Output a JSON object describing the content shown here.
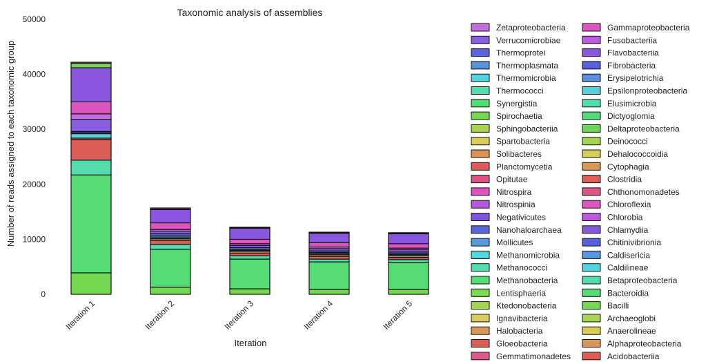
{
  "chart_data": {
    "type": "bar",
    "stacked": true,
    "title": "Taxonomic analysis of assemblies",
    "xlabel": "Iteration",
    "ylabel": "Number of reads assigned to each taxonomic group",
    "ylim": [
      0,
      50000
    ],
    "yticks": [
      0,
      10000,
      20000,
      30000,
      40000,
      50000
    ],
    "grid": false,
    "legend_position": "right",
    "categories": [
      "Iteration 1",
      "Iteration 2",
      "Iteration 3",
      "Iteration 4",
      "Iteration 5"
    ],
    "legend": [
      {
        "name": "Zetaproteobacteria",
        "color": "#c56ee0"
      },
      {
        "name": "Verrucomicrobiae",
        "color": "#8a5ee0"
      },
      {
        "name": "Thermoprotei",
        "color": "#5a62e0"
      },
      {
        "name": "Thermoplasmata",
        "color": "#5b92dc"
      },
      {
        "name": "Thermomicrobia",
        "color": "#55d3df"
      },
      {
        "name": "Thermococci",
        "color": "#55dcae"
      },
      {
        "name": "Synergistia",
        "color": "#56dc74"
      },
      {
        "name": "Spirochaetia",
        "color": "#74d950"
      },
      {
        "name": "Sphingobacteriia",
        "color": "#a8d54f"
      },
      {
        "name": "Spartobacteria",
        "color": "#d8cf58"
      },
      {
        "name": "Solibacteres",
        "color": "#da9454"
      },
      {
        "name": "Planctomycetia",
        "color": "#dc5d57"
      },
      {
        "name": "Opitutae",
        "color": "#dc5584"
      },
      {
        "name": "Nitrospira",
        "color": "#dc55be"
      },
      {
        "name": "Nitrospinia",
        "color": "#b659dc"
      },
      {
        "name": "Negativicutes",
        "color": "#7e55dc"
      },
      {
        "name": "Nanohaloarchaea",
        "color": "#5865dc"
      },
      {
        "name": "Mollicutes",
        "color": "#5a98dc"
      },
      {
        "name": "Methanomicrobia",
        "color": "#55d6dc"
      },
      {
        "name": "Methanococci",
        "color": "#55dcaa"
      },
      {
        "name": "Methanobacteria",
        "color": "#56dc78"
      },
      {
        "name": "Lentisphaeria",
        "color": "#7ad955"
      },
      {
        "name": "Ktedonobacteria",
        "color": "#a5d653"
      },
      {
        "name": "Ignavibacteria",
        "color": "#d8cc5a"
      },
      {
        "name": "Halobacteria",
        "color": "#da9a57"
      },
      {
        "name": "Gloeobacteria",
        "color": "#dc5f55"
      },
      {
        "name": "Gemmatimonadetes",
        "color": "#dc5a8a"
      },
      {
        "name": "Gammaproteobacteria",
        "color": "#dc55c0"
      },
      {
        "name": "Fusobacteriia",
        "color": "#c05ae0"
      },
      {
        "name": "Flavobacteriia",
        "color": "#8b57e0"
      },
      {
        "name": "Fibrobacteria",
        "color": "#5860e0"
      },
      {
        "name": "Erysipelotrichia",
        "color": "#5a8ee0"
      },
      {
        "name": "Epsilonproteobacteria",
        "color": "#55d0dc"
      },
      {
        "name": "Elusimicrobia",
        "color": "#55dcb0"
      },
      {
        "name": "Dictyoglomia",
        "color": "#55d97c"
      },
      {
        "name": "Deltaproteobacteria",
        "color": "#6ed655"
      },
      {
        "name": "Deinococci",
        "color": "#a5d653"
      },
      {
        "name": "Dehalococcoidia",
        "color": "#d6ce58"
      },
      {
        "name": "Cytophagia",
        "color": "#da9856"
      },
      {
        "name": "Clostridia",
        "color": "#dc6055"
      },
      {
        "name": "Chthonomonadetes",
        "color": "#dc5883"
      },
      {
        "name": "Chloroflexia",
        "color": "#dc55c2"
      },
      {
        "name": "Chlorobia",
        "color": "#be5ae0"
      },
      {
        "name": "Chlamydiia",
        "color": "#8a57e0"
      },
      {
        "name": "Chitinivibrionia",
        "color": "#5660dc"
      },
      {
        "name": "Caldisericia",
        "color": "#5a96dc"
      },
      {
        "name": "Caldilineae",
        "color": "#55d3dc"
      },
      {
        "name": "Betaproteobacteria",
        "color": "#55dcae"
      },
      {
        "name": "Bacteroidia",
        "color": "#55dc78"
      },
      {
        "name": "Bacilli",
        "color": "#74d955"
      },
      {
        "name": "Archaeoglobi",
        "color": "#a8d655"
      },
      {
        "name": "Anaerolineae",
        "color": "#dacc5a"
      },
      {
        "name": "Alphaproteobacteria",
        "color": "#da9656"
      },
      {
        "name": "Acidobacteriia",
        "color": "#dc5e55"
      }
    ],
    "stack_segments": [
      {
        "color": "#74d950",
        "values": [
          3900,
          1300,
          1000,
          900,
          900
        ]
      },
      {
        "color": "#56dc74",
        "values": [
          17800,
          6900,
          5400,
          5000,
          4900
        ]
      },
      {
        "color": "#55dcae",
        "values": [
          2700,
          900,
          600,
          500,
          500
        ]
      },
      {
        "color": "#dc5d57",
        "values": [
          3800,
          700,
          500,
          500,
          400
        ]
      },
      {
        "color": "#da9454",
        "values": [
          200,
          300,
          300,
          300,
          300
        ]
      },
      {
        "color": "#55d3df",
        "values": [
          800,
          200,
          200,
          200,
          200
        ]
      },
      {
        "color": "#5b92dc",
        "values": [
          200,
          300,
          200,
          200,
          200
        ]
      },
      {
        "color": "#5a62e0",
        "values": [
          200,
          400,
          300,
          300,
          300
        ]
      },
      {
        "color": "#8a5ee0",
        "values": [
          2200,
          500,
          400,
          400,
          400
        ]
      },
      {
        "color": "#c56ee0",
        "values": [
          1000,
          300,
          300,
          300,
          300
        ]
      },
      {
        "color": "#dc55be",
        "values": [
          2200,
          1200,
          800,
          800,
          800
        ]
      },
      {
        "color": "#8b57e0",
        "values": [
          6200,
          2400,
          2000,
          1700,
          1800
        ]
      },
      {
        "color": "#74d955",
        "values": [
          800,
          100,
          100,
          100,
          100
        ]
      },
      {
        "color": "#dc5e55",
        "values": [
          200,
          200,
          100,
          100,
          100
        ]
      }
    ]
  }
}
